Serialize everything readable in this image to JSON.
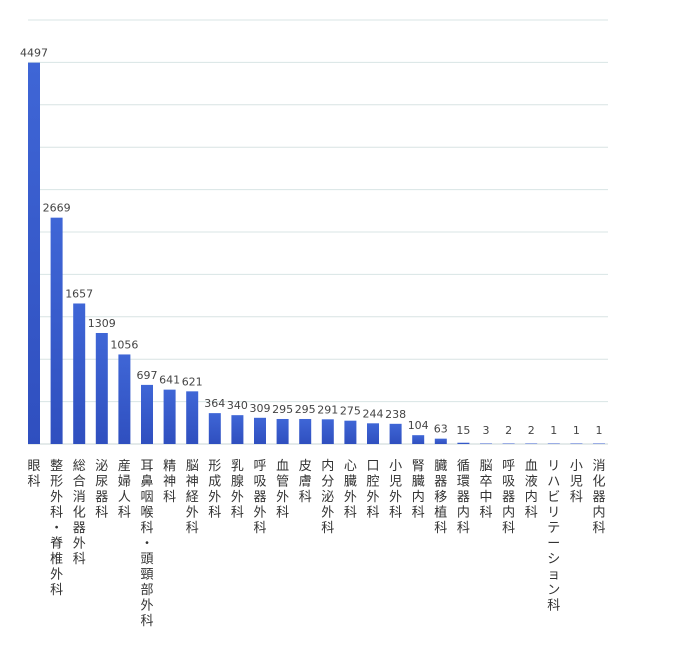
{
  "chart_data": {
    "type": "bar",
    "title": "",
    "xlabel": "",
    "ylabel": "",
    "ylim": [
      0,
      5000
    ],
    "grid": true,
    "legend": "none",
    "categories": [
      "眼科",
      "整形外科・脊椎外科",
      "総合消化器外科",
      "泌尿器科",
      "産婦人科",
      "耳鼻咽喉科・頭頸部外科",
      "精神科",
      "脳神経外科",
      "形成外科",
      "乳腺外科",
      "呼吸器外科",
      "血管外科",
      "皮膚科",
      "内分泌外科",
      "心臓外科",
      "口腔外科",
      "小児外科",
      "腎臓内科",
      "臓器移植科",
      "循環器内科",
      "脳卒中科",
      "呼吸器内科",
      "血液内科",
      "リハビリテーション科",
      "小児科",
      "消化器内科"
    ],
    "values": [
      4497,
      2669,
      1657,
      1309,
      1056,
      697,
      641,
      621,
      364,
      340,
      309,
      295,
      295,
      291,
      275,
      244,
      238,
      104,
      63,
      15,
      3,
      2,
      2,
      1,
      1,
      1
    ],
    "colors": {
      "bar_top": "#3f66d6",
      "bar_bottom": "#2f4fbf",
      "grid": "#d8e4e4",
      "baseline": "#c8d4d4"
    }
  }
}
